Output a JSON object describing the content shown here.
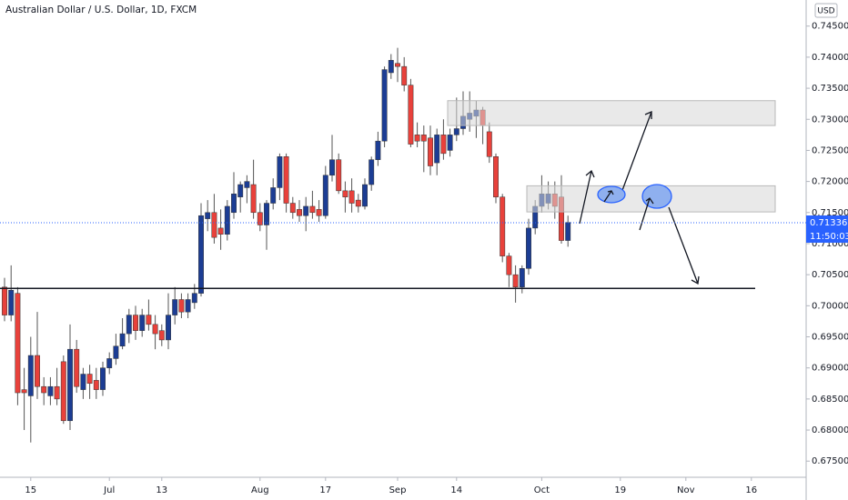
{
  "chart_data": {
    "type": "candlestick",
    "title": "Australian Dollar / U.S. Dollar, 1D, FXCM",
    "currency": "USD",
    "up_color": "#1c3d94",
    "down_color": "#e8413b",
    "grid": false,
    "ylim": [
      0.6724,
      0.7492
    ],
    "yticks": [
      {
        "value": 0.675,
        "label": "0.67500"
      },
      {
        "value": 0.68,
        "label": "0.68000"
      },
      {
        "value": 0.685,
        "label": "0.68500"
      },
      {
        "value": 0.69,
        "label": "0.69000"
      },
      {
        "value": 0.695,
        "label": "0.69500"
      },
      {
        "value": 0.7,
        "label": "0.70000"
      },
      {
        "value": 0.705,
        "label": "0.70500"
      },
      {
        "value": 0.71,
        "label": "0.71000"
      },
      {
        "value": 0.715,
        "label": "0.71500"
      },
      {
        "value": 0.72,
        "label": "0.72000"
      },
      {
        "value": 0.725,
        "label": "0.72500"
      },
      {
        "value": 0.73,
        "label": "0.73000"
      },
      {
        "value": 0.735,
        "label": "0.73500"
      },
      {
        "value": 0.74,
        "label": "0.74000"
      },
      {
        "value": 0.745,
        "label": "0.74500"
      }
    ],
    "categories": [
      null,
      null,
      null,
      null,
      "15",
      null,
      null,
      null,
      null,
      null,
      null,
      null,
      null,
      null,
      null,
      null,
      "Jul",
      null,
      null,
      null,
      null,
      null,
      null,
      null,
      "13",
      null,
      null,
      null,
      null,
      null,
      null,
      null,
      null,
      null,
      null,
      null,
      null,
      null,
      null,
      "Aug",
      null,
      null,
      null,
      null,
      null,
      null,
      null,
      null,
      null,
      "17",
      null,
      null,
      null,
      null,
      null,
      null,
      null,
      null,
      null,
      null,
      "Sep",
      null,
      null,
      null,
      null,
      null,
      null,
      null,
      null,
      "14",
      null,
      null,
      null,
      null,
      null,
      null,
      null,
      null,
      null,
      null,
      null,
      null,
      "Oct",
      null,
      null,
      null,
      null,
      null,
      null,
      null,
      null,
      null,
      null,
      null,
      "19",
      null,
      null,
      null,
      null,
      null,
      null,
      null,
      null,
      null,
      "Nov",
      null,
      null,
      null,
      null,
      null,
      null,
      null,
      null,
      null,
      "16",
      null,
      null,
      null,
      null,
      null,
      null,
      null
    ],
    "open": [
      0.703,
      0.6985,
      0.702,
      0.6865,
      0.6855,
      0.692,
      0.687,
      0.6855,
      0.687,
      0.691,
      0.6815,
      0.693,
      0.6865,
      0.689,
      0.688,
      0.6865,
      0.69,
      0.6915,
      0.6935,
      0.6955,
      0.6985,
      0.696,
      0.6985,
      0.697,
      0.696,
      0.6945,
      0.6985,
      0.701,
      0.699,
      0.7005,
      0.702,
      0.714,
      0.715,
      0.7125,
      0.7115,
      0.715,
      0.7175,
      0.719,
      0.7195,
      0.715,
      0.713,
      0.7165,
      0.719,
      0.724,
      0.7165,
      0.7155,
      0.7145,
      0.716,
      0.7155,
      0.7145,
      0.721,
      0.7235,
      0.7185,
      0.7185,
      0.717,
      0.716,
      0.7195,
      0.7235,
      0.7265,
      0.7375,
      0.739,
      0.7385,
      0.7355,
      0.7275,
      0.7275,
      0.727,
      0.723,
      0.7275,
      0.725,
      0.7275,
      0.7285,
      0.73,
      0.7305,
      0.7315,
      0.728,
      0.724,
      0.7175,
      0.708,
      0.705,
      0.703,
      0.706,
      0.7125,
      0.716,
      0.7165,
      0.718,
      0.7175,
      0.7105,
      null,
      null,
      null,
      null,
      null,
      null,
      null,
      null,
      null,
      null,
      null,
      null,
      null,
      null,
      null,
      null,
      null,
      null,
      null,
      null,
      null,
      null,
      null,
      null,
      null,
      null,
      null,
      null,
      null,
      null,
      null,
      null,
      null,
      null,
      null
    ],
    "high": [
      0.7045,
      0.7065,
      0.703,
      0.69,
      0.695,
      0.699,
      0.6885,
      0.6885,
      0.69,
      0.692,
      0.697,
      0.6945,
      0.69,
      0.6905,
      0.69,
      0.691,
      0.6925,
      0.6955,
      0.698,
      0.6995,
      0.7,
      0.6995,
      0.701,
      0.6985,
      0.697,
      0.702,
      0.703,
      0.702,
      0.702,
      0.7035,
      0.7165,
      0.717,
      0.718,
      0.7155,
      0.717,
      0.7215,
      0.72,
      0.721,
      0.7235,
      0.7165,
      0.717,
      0.7205,
      0.7245,
      0.7245,
      0.7175,
      0.717,
      0.7175,
      0.7185,
      0.717,
      0.7225,
      0.7275,
      0.7245,
      0.72,
      0.7205,
      0.718,
      0.7205,
      0.724,
      0.728,
      0.7385,
      0.7405,
      0.7415,
      0.74,
      0.7365,
      0.7295,
      0.729,
      0.729,
      0.7285,
      0.73,
      0.7285,
      0.7335,
      0.7345,
      0.7345,
      0.733,
      0.732,
      0.7295,
      0.7245,
      0.718,
      0.7085,
      0.7065,
      0.7065,
      0.714,
      0.717,
      0.721,
      0.72,
      0.72,
      0.721,
      0.7145,
      null,
      null,
      null,
      null,
      null,
      null,
      null,
      null,
      null,
      null,
      null,
      null,
      null,
      null,
      null,
      null,
      null,
      null,
      null,
      null,
      null,
      null,
      null,
      null,
      null,
      null,
      null,
      null,
      null,
      null,
      null,
      null,
      null,
      null,
      null
    ],
    "low": [
      0.6975,
      0.6975,
      0.684,
      0.68,
      0.678,
      0.685,
      0.684,
      0.684,
      0.684,
      0.681,
      0.68,
      0.686,
      0.685,
      0.685,
      0.685,
      0.6855,
      0.689,
      0.6905,
      0.693,
      0.694,
      0.6945,
      0.695,
      0.696,
      0.693,
      0.6935,
      0.693,
      0.697,
      0.698,
      0.698,
      0.6995,
      0.7015,
      0.712,
      0.71,
      0.709,
      0.7105,
      0.714,
      0.715,
      0.7165,
      0.714,
      0.712,
      0.709,
      0.7155,
      0.717,
      0.715,
      0.714,
      0.7135,
      0.712,
      0.714,
      0.7135,
      0.714,
      0.72,
      0.718,
      0.715,
      0.715,
      0.715,
      0.7155,
      0.7185,
      0.7225,
      0.7255,
      0.7365,
      0.736,
      0.7345,
      0.7255,
      0.7255,
      0.7215,
      0.721,
      0.721,
      0.7235,
      0.724,
      0.7265,
      0.7275,
      0.728,
      0.727,
      0.726,
      0.723,
      0.7165,
      0.707,
      0.703,
      0.7005,
      0.702,
      0.705,
      0.7115,
      0.715,
      0.7155,
      0.714,
      0.71,
      0.7095,
      null,
      null,
      null,
      null,
      null,
      null,
      null,
      null,
      null,
      null,
      null,
      null,
      null,
      null,
      null,
      null,
      null,
      null,
      null,
      null,
      null,
      null,
      null,
      null,
      null,
      null,
      null,
      null,
      null,
      null,
      null,
      null,
      null,
      null,
      null
    ],
    "close": [
      0.6985,
      0.7025,
      0.686,
      0.686,
      0.692,
      0.687,
      0.686,
      0.687,
      0.685,
      0.6815,
      0.693,
      0.687,
      0.689,
      0.6875,
      0.6865,
      0.69,
      0.6915,
      0.6935,
      0.6955,
      0.6985,
      0.696,
      0.6985,
      0.697,
      0.6955,
      0.6945,
      0.6985,
      0.701,
      0.699,
      0.701,
      0.702,
      0.7145,
      0.715,
      0.711,
      0.7115,
      0.716,
      0.718,
      0.7195,
      0.72,
      0.715,
      0.713,
      0.7165,
      0.719,
      0.724,
      0.7165,
      0.715,
      0.7145,
      0.716,
      0.715,
      0.7145,
      0.721,
      0.7235,
      0.7185,
      0.7175,
      0.7165,
      0.716,
      0.7195,
      0.7235,
      0.7265,
      0.738,
      0.7395,
      0.7385,
      0.7355,
      0.726,
      0.7265,
      0.7265,
      0.7225,
      0.7275,
      0.7245,
      0.7275,
      0.7285,
      0.7305,
      0.731,
      0.7315,
      0.729,
      0.724,
      0.7175,
      0.708,
      0.705,
      0.703,
      0.706,
      0.7125,
      0.716,
      0.718,
      0.718,
      0.716,
      0.7105,
      0.7134,
      null,
      null,
      null,
      null,
      null,
      null,
      null,
      null,
      null,
      null,
      null,
      null,
      null,
      null,
      null,
      null,
      null,
      null,
      null,
      null,
      null,
      null,
      null,
      null,
      null,
      null,
      null,
      null,
      null,
      null,
      null,
      null,
      null,
      null,
      null
    ],
    "last_price": 0.71336,
    "countdown": "11:50:03",
    "support_level": 0.7028,
    "zones": [
      {
        "low": 0.729,
        "high": 0.733
      },
      {
        "low": 0.7151,
        "high": 0.7193
      }
    ]
  }
}
